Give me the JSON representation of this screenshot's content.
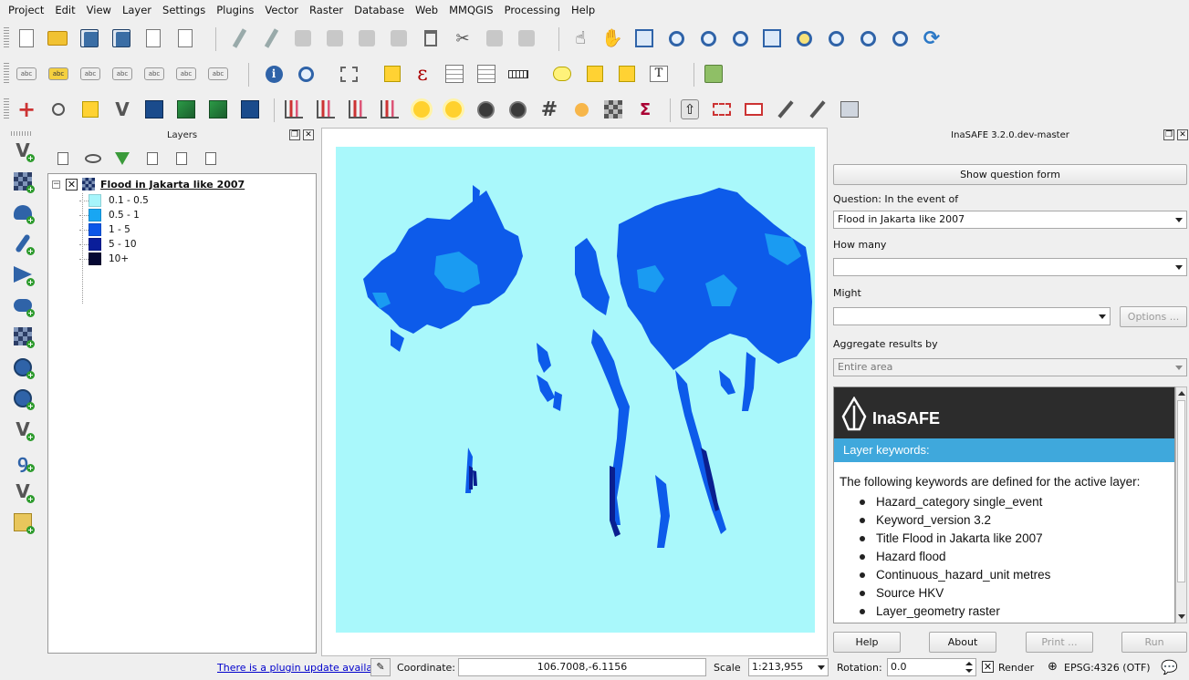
{
  "menu": [
    "Project",
    "Edit",
    "View",
    "Layer",
    "Settings",
    "Plugins",
    "Vector",
    "Raster",
    "Database",
    "Web",
    "MMQGIS",
    "Processing",
    "Help"
  ],
  "layers_panel": {
    "title": "Layers",
    "layer_name": "Flood in Jakarta like 2007",
    "legend": [
      {
        "label": "0.1 - 0.5",
        "color": "#a6f5fb"
      },
      {
        "label": "0.5 - 1",
        "color": "#18a6f3"
      },
      {
        "label": "1 - 5",
        "color": "#0b57e8"
      },
      {
        "label": "5 - 10",
        "color": "#0a1e9a"
      },
      {
        "label": "10+",
        "color": "#050833"
      }
    ]
  },
  "colors": {
    "map_background": "#a9f8fb",
    "flood_main": "#0d5bea",
    "flood_light": "#1a9bf2",
    "flood_dark": "#0a1f8f",
    "brand_dark": "#2c2c2c",
    "brand_accent": "#3fa8dc"
  },
  "inasafe": {
    "title": "InaSAFE 3.2.0.dev-master",
    "show_question_form": "Show question form",
    "question_label": "Question: In the event of",
    "hazard_value": "Flood in Jakarta like 2007",
    "how_many_label": "How many",
    "exposure_value": "",
    "might_label": "Might",
    "function_value": "",
    "options_button": "Options ...",
    "aggregate_label": "Aggregate results by",
    "aggregate_value": "Entire area",
    "brand": "InaSAFE",
    "keywords_heading": "Layer keywords:",
    "keywords_intro": "The following keywords are defined for the active layer:",
    "keywords": [
      "Hazard_category single_event",
      "Keyword_version 3.2",
      "Title Flood in Jakarta like 2007",
      "Hazard flood",
      "Continuous_hazard_unit metres",
      "Source HKV",
      "Layer_geometry raster"
    ],
    "help_button": "Help",
    "about_button": "About",
    "print_button": "Print ...",
    "run_button": "Run"
  },
  "status": {
    "plugin_update": "There is a plugin update available",
    "coordinate_label": "Coordinate:",
    "coordinate_value": "106.7008,-6.1156",
    "scale_label": "Scale",
    "scale_value": "1:213,955",
    "rotation_label": "Rotation:",
    "rotation_value": "0.0",
    "render_label": "Render",
    "crs": "EPSG:4326 (OTF)"
  }
}
